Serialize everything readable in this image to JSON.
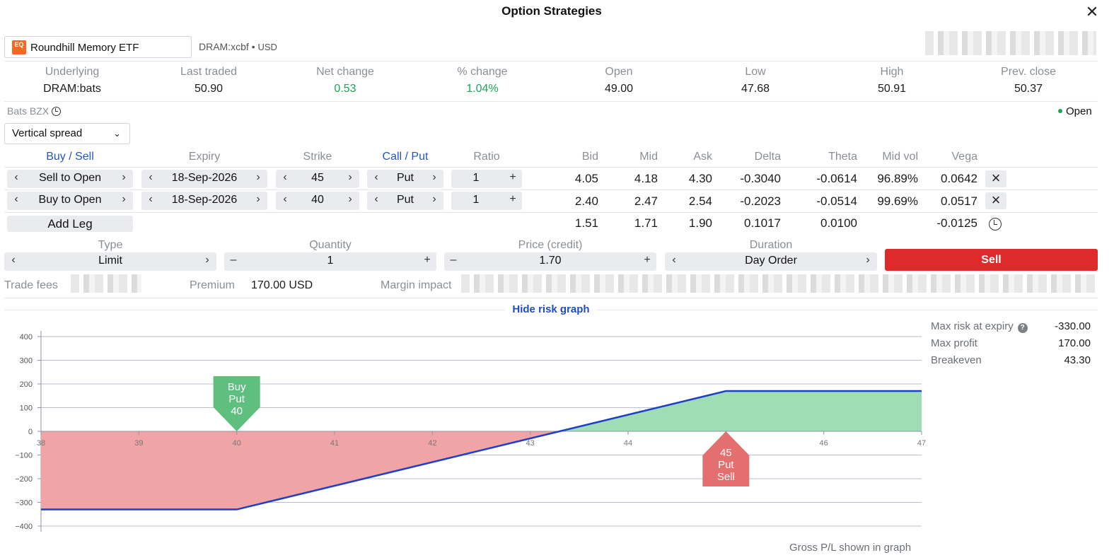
{
  "window": {
    "title": "Option Strategies",
    "close_icon": "close-icon"
  },
  "instrument": {
    "logo_text": "EQ",
    "name": "Roundhill Memory ETF",
    "symbol": "DRAM:xcbf",
    "separator": "•",
    "currency": "USD"
  },
  "quote": {
    "labels": [
      "Underlying",
      "Last traded",
      "Net change",
      "% change",
      "Open",
      "Low",
      "High",
      "Prev. close"
    ],
    "values": [
      "DRAM:bats",
      "50.90",
      "0.53",
      "1.04%",
      "49.00",
      "47.68",
      "50.91",
      "50.37"
    ]
  },
  "exchange": {
    "name": "Bats BZX",
    "status": "Open"
  },
  "strategy": {
    "selected": "Vertical spread"
  },
  "legs_table": {
    "headers": {
      "buy_sell": "Buy / Sell",
      "expiry": "Expiry",
      "strike": "Strike",
      "call_put": "Call / Put",
      "ratio": "Ratio",
      "bid": "Bid",
      "mid": "Mid",
      "ask": "Ask",
      "delta": "Delta",
      "theta": "Theta",
      "mid_vol": "Mid vol",
      "vega": "Vega"
    },
    "legs": [
      {
        "buy_sell": "Sell to Open",
        "expiry": "18-Sep-2026",
        "strike": "45",
        "call_put": "Put",
        "ratio": "1",
        "bid": "4.05",
        "mid": "4.18",
        "ask": "4.30",
        "delta": "-0.3040",
        "theta": "-0.0614",
        "mid_vol": "96.89%",
        "vega": "0.0642"
      },
      {
        "buy_sell": "Buy to Open",
        "expiry": "18-Sep-2026",
        "strike": "40",
        "call_put": "Put",
        "ratio": "1",
        "bid": "2.40",
        "mid": "2.47",
        "ask": "2.54",
        "delta": "-0.2023",
        "theta": "-0.0514",
        "mid_vol": "99.69%",
        "vega": "0.0517"
      }
    ],
    "totals": {
      "bid": "1.51",
      "mid": "1.71",
      "ask": "1.90",
      "delta": "0.1017",
      "theta": "0.0100",
      "vega": "-0.0125"
    },
    "add_leg_label": "Add Leg"
  },
  "order": {
    "labels": {
      "type": "Type",
      "quantity": "Quantity",
      "price": "Price (credit)",
      "duration": "Duration"
    },
    "type": "Limit",
    "quantity": "1",
    "price": "1.70",
    "duration": "Day Order",
    "submit_label": "Sell"
  },
  "fees": {
    "trade_fees_label": "Trade fees",
    "premium_label": "Premium",
    "premium_value": "170.00 USD",
    "margin_label": "Margin impact"
  },
  "risk": {
    "toggle_label": "Hide risk graph",
    "max_risk_label": "Max risk at expiry",
    "max_risk_value": "-330.00",
    "max_profit_label": "Max profit",
    "max_profit_value": "170.00",
    "breakeven_label": "Breakeven",
    "breakeven_value": "43.30",
    "footer": "Gross P/L shown in graph"
  },
  "chart_data": {
    "type": "area",
    "x": [
      38,
      40,
      45,
      47
    ],
    "y": [
      -330,
      -330,
      170,
      170
    ],
    "breakeven": 43.3,
    "xlim": [
      38,
      47
    ],
    "ylim": [
      -450,
      450
    ],
    "x_ticks": [
      "38",
      "39",
      "40",
      "41",
      "42",
      "43",
      "44",
      "45",
      "46",
      "47"
    ],
    "y_ticks": [
      "400",
      "300",
      "200",
      "100",
      "0",
      "−100",
      "−200",
      "−300",
      "−400"
    ],
    "markers": [
      {
        "strike": 40,
        "lines": [
          "Buy",
          "Put",
          "40"
        ],
        "color": "#5fbf7e"
      },
      {
        "strike": 45,
        "lines": [
          "45",
          "Put",
          "Sell"
        ],
        "color": "#e46f6f"
      }
    ],
    "colors": {
      "line": "#1f3fc9",
      "profit": "#a0dcb4",
      "loss": "#f0a4a6"
    },
    "grid": true
  }
}
